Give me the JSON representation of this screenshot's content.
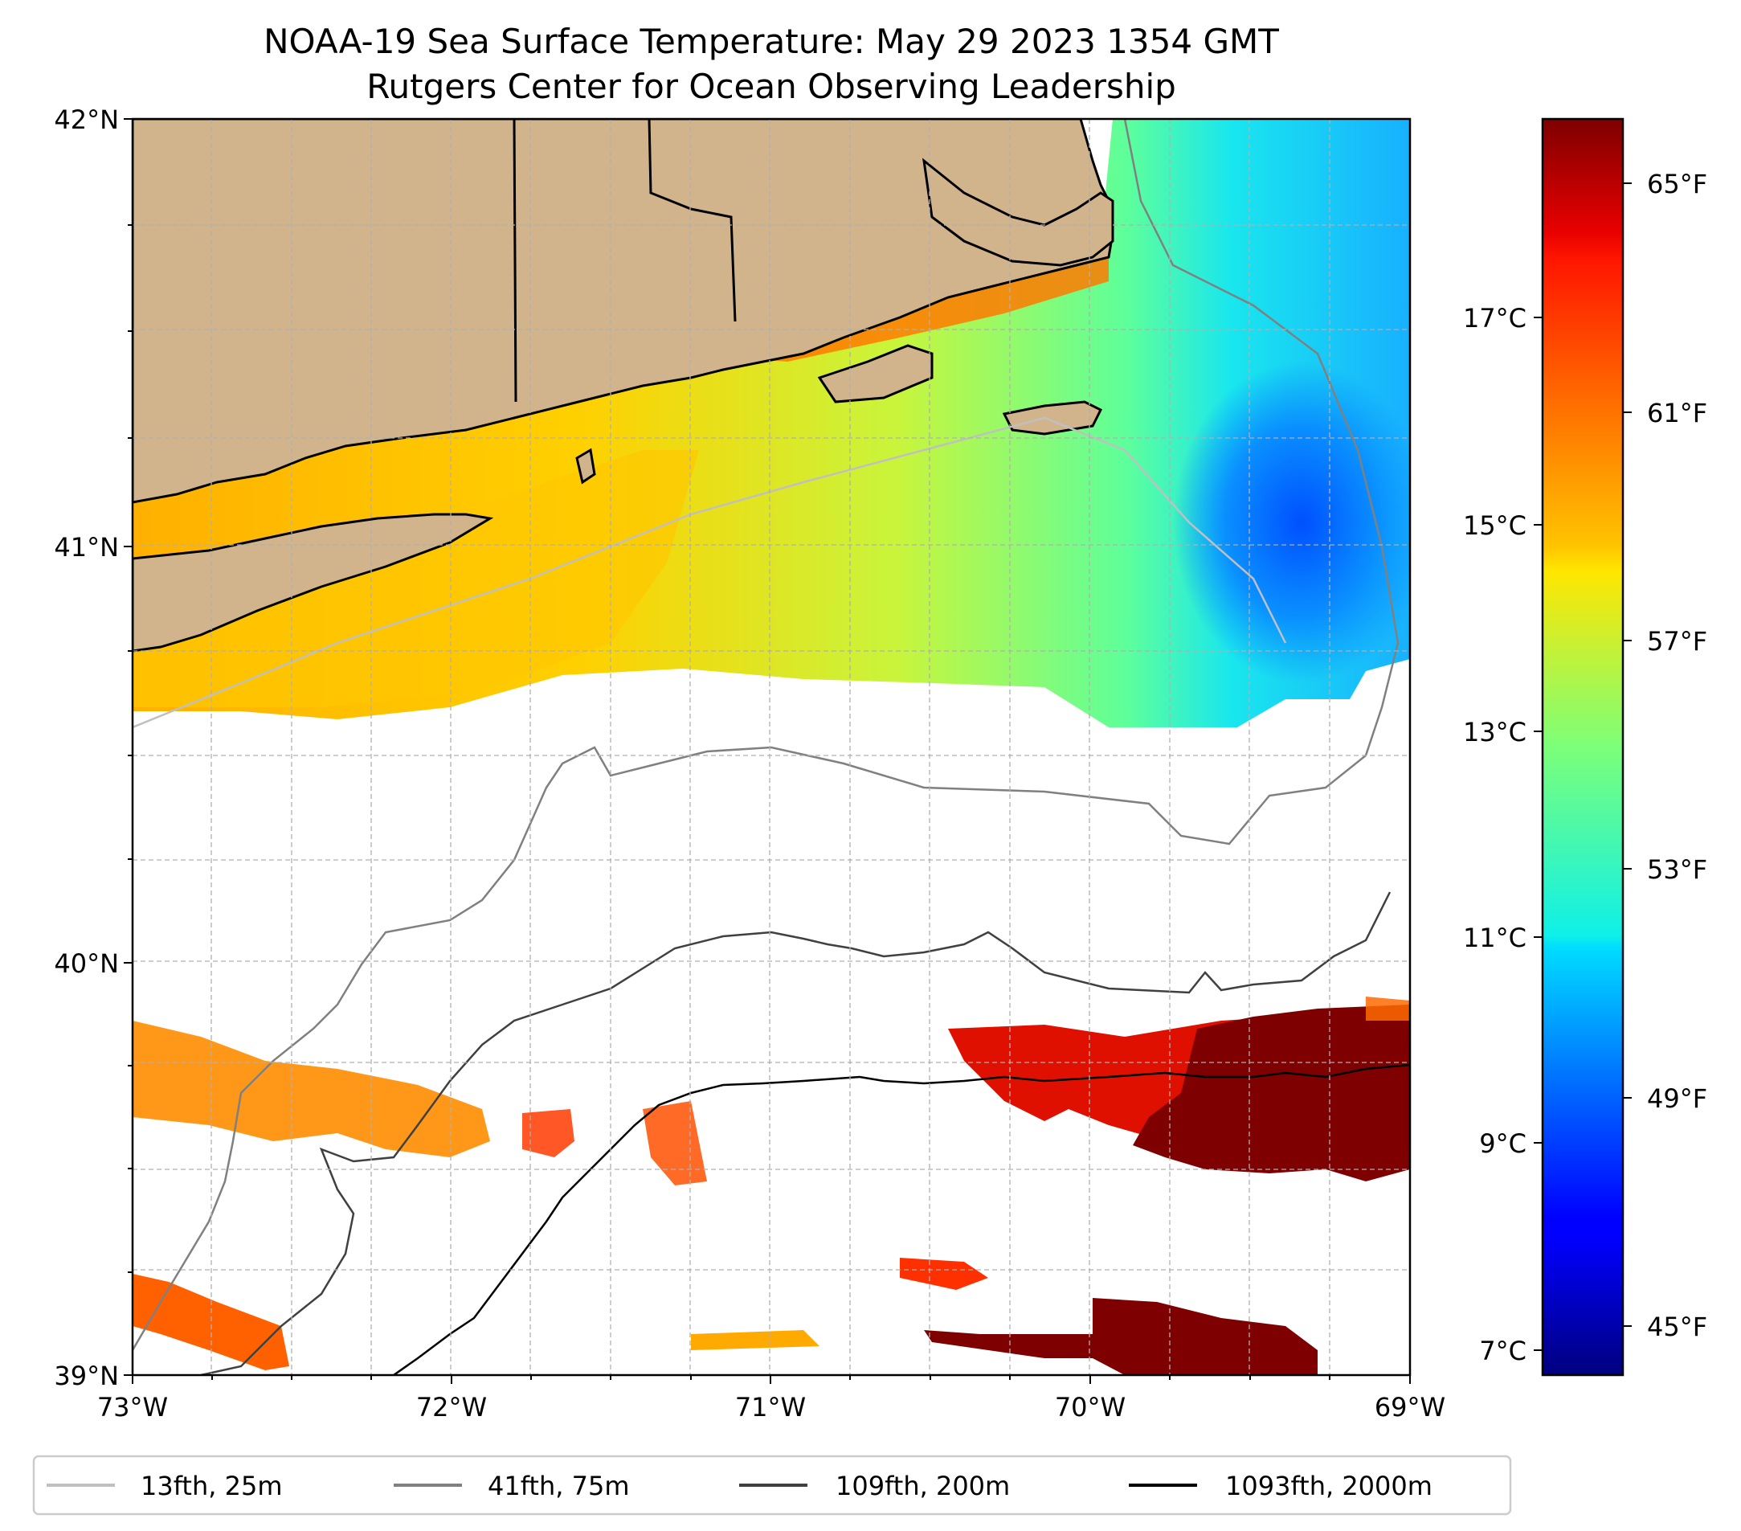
{
  "figure": {
    "title_line1": "NOAA-19 Sea Surface Temperature: May 29 2023 1354 GMT",
    "title_line2": "Rutgers Center for Ocean Observing Leadership"
  },
  "map": {
    "lat_labels": [
      "42°N",
      "41°N",
      "40°N",
      "39°N"
    ],
    "lon_labels": [
      "73°W",
      "72°W",
      "71°W",
      "70°W",
      "69°W"
    ],
    "land_color": "#d2b48c",
    "no_data_color": "#ffffff"
  },
  "colorbar": {
    "colormap": "jet",
    "celsius_labels": [
      "17°C",
      "15°C",
      "13°C",
      "11°C",
      "9°C",
      "7°C"
    ],
    "fahrenheit_labels": [
      "65°F",
      "61°F",
      "57°F",
      "53°F",
      "49°F",
      "45°F"
    ]
  },
  "legend": {
    "placement": "bottom",
    "items": [
      {
        "label": "13fth, 25m",
        "color": "#c0c0c0"
      },
      {
        "label": "41fth, 75m",
        "color": "#808080"
      },
      {
        "label": "109fth, 200m",
        "color": "#404040"
      },
      {
        "label": "1093fth, 2000m",
        "color": "#000000"
      }
    ]
  }
}
